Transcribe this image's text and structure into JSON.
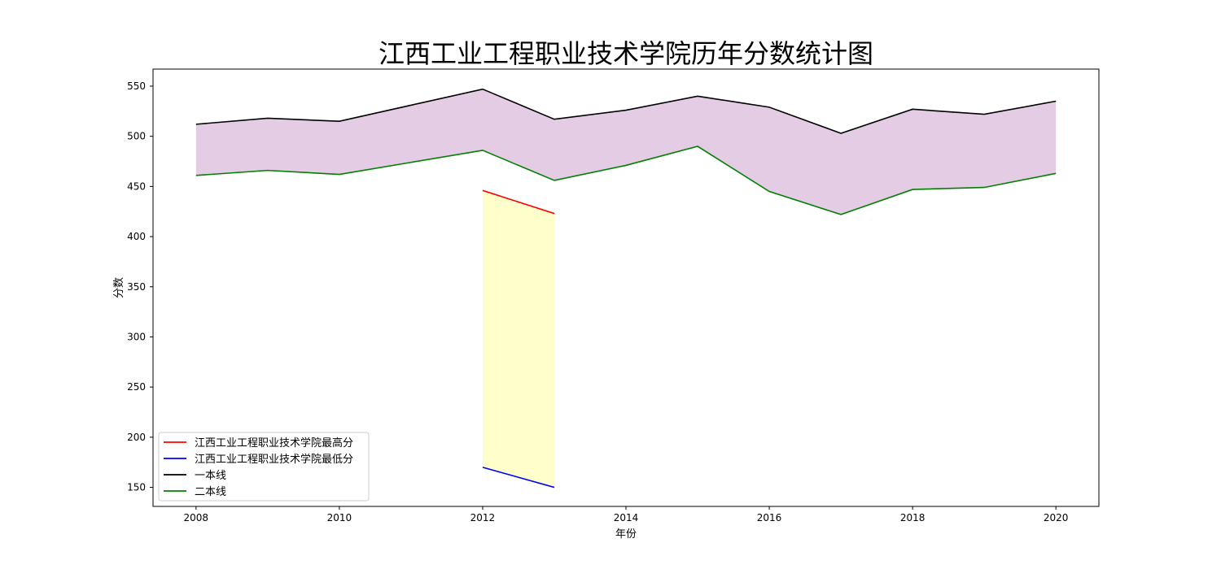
{
  "chart_data": {
    "type": "line",
    "title": "江西工业工程职业技术学院历年分数统计图",
    "xlabel": "年份",
    "ylabel": "分数",
    "xlim": [
      2007.4,
      2020.6
    ],
    "ylim": [
      131,
      567
    ],
    "xticks": [
      2008,
      2010,
      2012,
      2014,
      2016,
      2018,
      2020
    ],
    "yticks": [
      150,
      200,
      250,
      300,
      350,
      400,
      450,
      500,
      550
    ],
    "grid": false,
    "legend_position": "lower-left",
    "series": [
      {
        "name": "江西工业工程职业技术学院最高分",
        "color": "#ff0000",
        "x": [
          2012,
          2013
        ],
        "y": [
          446,
          423
        ]
      },
      {
        "name": "江西工业工程职业技术学院最低分",
        "color": "#0000ff",
        "x": [
          2012,
          2013
        ],
        "y": [
          170,
          150
        ]
      },
      {
        "name": "一本线",
        "color": "#000000",
        "x": [
          2008,
          2009,
          2010,
          2011,
          2012,
          2013,
          2014,
          2015,
          2016,
          2017,
          2018,
          2019,
          2020
        ],
        "y": [
          512,
          518,
          515,
          531,
          547,
          517,
          526,
          540,
          529,
          503,
          527,
          522,
          535
        ]
      },
      {
        "name": "二本线",
        "color": "#008000",
        "x": [
          2008,
          2009,
          2010,
          2011,
          2012,
          2013,
          2014,
          2015,
          2016,
          2017,
          2018,
          2019,
          2020
        ],
        "y": [
          461,
          466,
          462,
          474,
          486,
          456,
          471,
          490,
          445,
          422,
          447,
          449,
          463
        ]
      }
    ],
    "fills": [
      {
        "between": [
          "一本线",
          "二本线"
        ],
        "color": "#e4cce4"
      },
      {
        "between": [
          "江西工业工程职业技术学院最高分",
          "江西工业工程职业技术学院最低分"
        ],
        "color": "#ffffcc"
      }
    ]
  }
}
